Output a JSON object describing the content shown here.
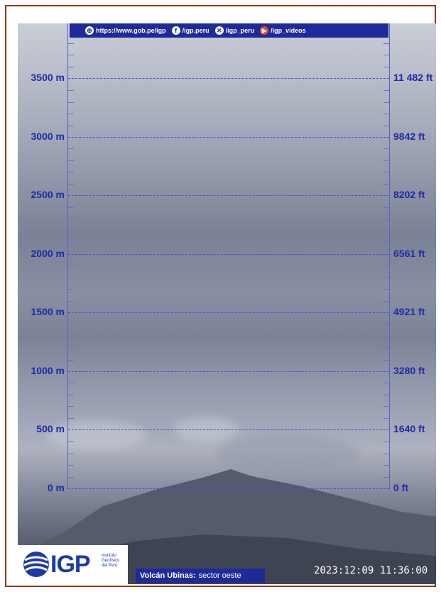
{
  "topbar": {
    "website": "https://www.gob.pe/igp",
    "facebook": "/igp.peru",
    "x": "/igp_peru",
    "videos": "/igp_videos"
  },
  "scale": {
    "meters": [
      "3500 m",
      "3000 m",
      "2500 m",
      "2000 m",
      "1500 m",
      "1000 m",
      "500 m",
      "0 m"
    ],
    "feet": [
      "11 482 ft",
      "9842 ft",
      "8202 ft",
      "6561 ft",
      "4921 ft",
      "3280 ft",
      "1640 ft",
      "0 ft"
    ]
  },
  "logo": {
    "text": "IGP",
    "subtitle": "Instituto Geofísico del Perú"
  },
  "caption": {
    "volcano_name": "Volcán Ubinas:",
    "sector": "sector oeste"
  },
  "timestamp": "2023:12:09 11:36:00",
  "colors": {
    "frame": "#8b3a1a",
    "scale": "#1e28a8",
    "bar": "#1e2a9a"
  }
}
